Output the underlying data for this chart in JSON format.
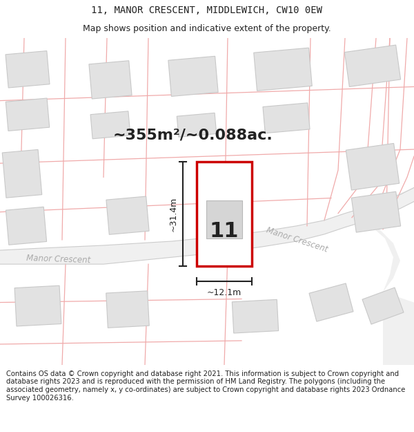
{
  "title_line1": "11, MANOR CRESCENT, MIDDLEWICH, CW10 0EW",
  "title_line2": "Map shows position and indicative extent of the property.",
  "area_text": "~355m²/~0.088ac.",
  "dimension_width": "~12.1m",
  "dimension_height": "~31.4m",
  "number_label": "11",
  "road_label_left": "Manor Crescent",
  "road_label_right": "Manor Crescent",
  "footer_text": "Contains OS data © Crown copyright and database right 2021. This information is subject to Crown copyright and database rights 2023 and is reproduced with the permission of HM Land Registry. The polygons (including the associated geometry, namely x, y co-ordinates) are subject to Crown copyright and database rights 2023 Ordnance Survey 100026316.",
  "bg_color": "#ffffff",
  "map_bg": "#f7f7f7",
  "building_fill": "#e2e2e2",
  "building_edge": "#c8c8c8",
  "road_fill": "#f0f0f0",
  "road_edge": "#d0d0d0",
  "highlight_color": "#cc0000",
  "highlight_fill": "#ffffff",
  "line_color": "#222222",
  "text_color": "#222222",
  "road_text_color": "#aaaaaa",
  "faint_line_color": "#f0aaaa",
  "title_fontsize": 10,
  "subtitle_fontsize": 9,
  "area_fontsize": 16,
  "footer_fontsize": 7.2
}
